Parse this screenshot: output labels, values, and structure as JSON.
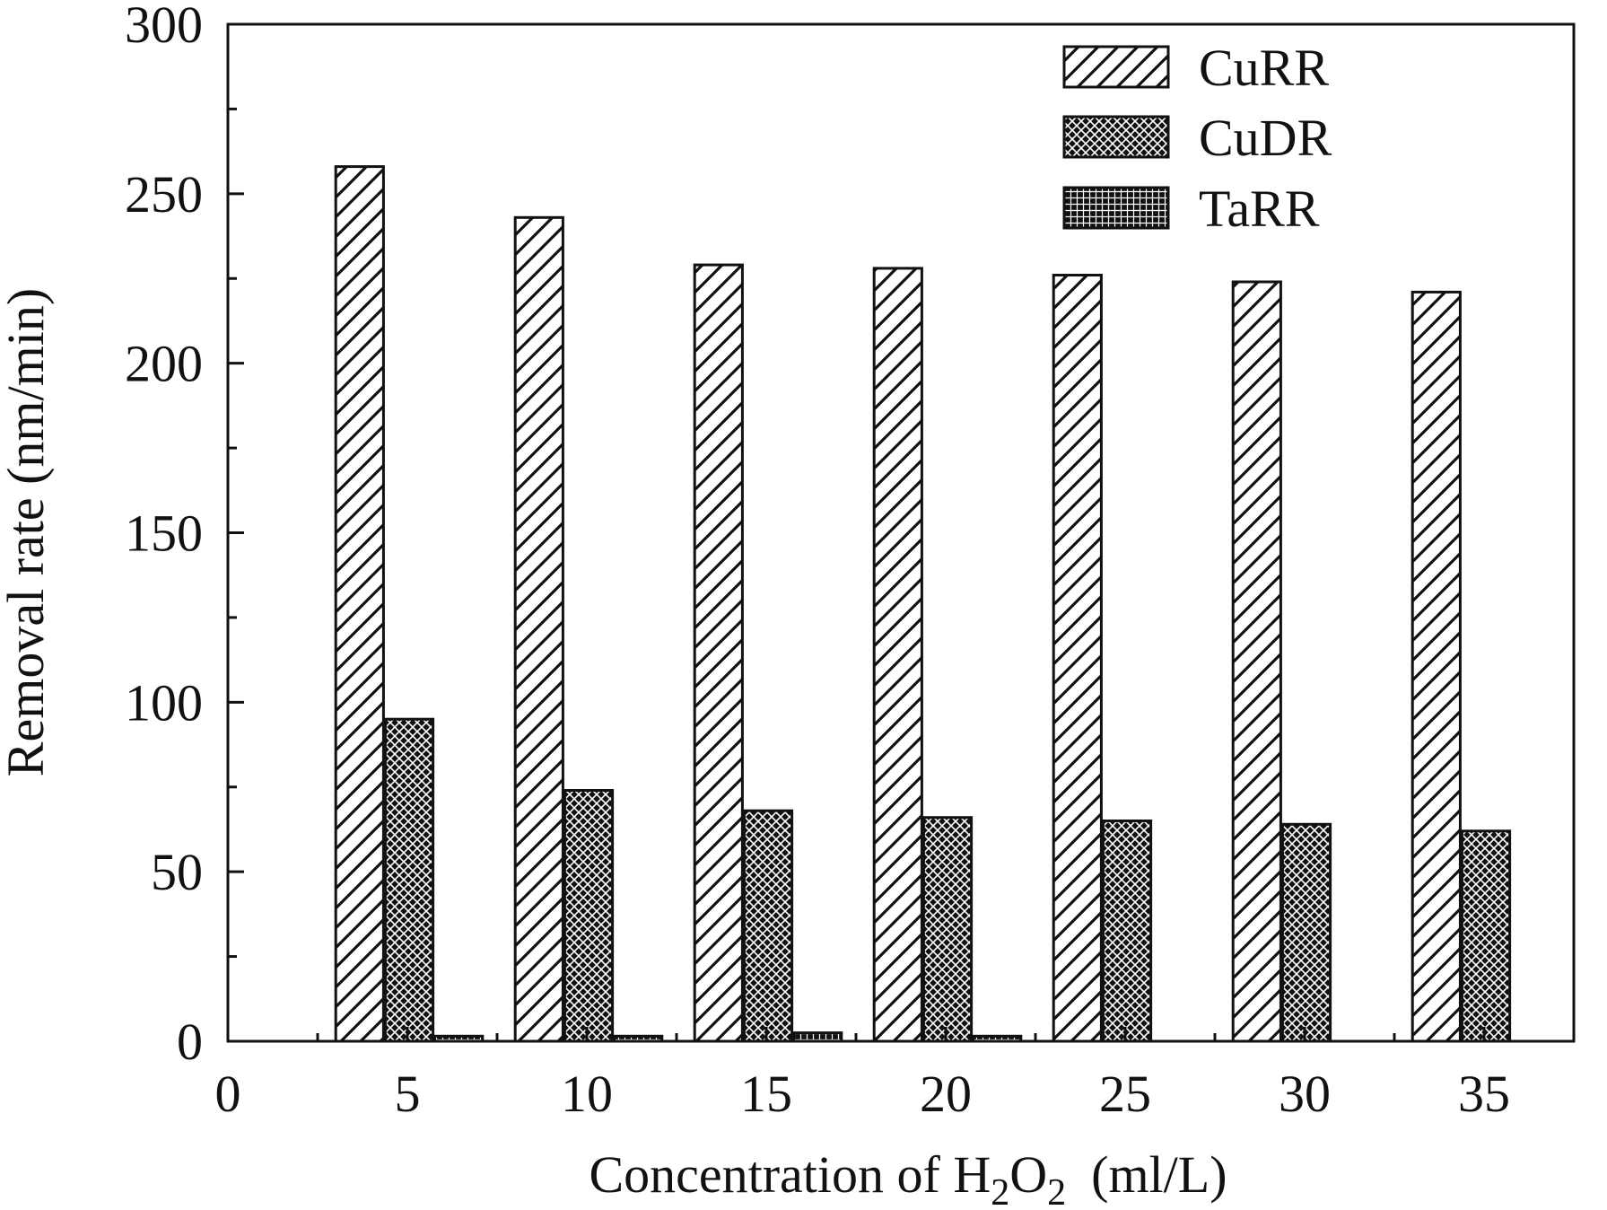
{
  "chart_data": {
    "type": "bar",
    "title": "",
    "xlabel": {
      "main": "Concentration of H",
      "sub1": "2",
      "mid": "O",
      "sub2": "2",
      "unit": "(ml/L)"
    },
    "ylabel": "Removal rate (nm/min)",
    "xlim": [
      0,
      37.5
    ],
    "ylim": [
      0,
      300
    ],
    "x_ticks": [
      "0",
      "5",
      "10",
      "15",
      "20",
      "25",
      "30",
      "35"
    ],
    "y_ticks": [
      "0",
      "50",
      "100",
      "150",
      "200",
      "250",
      "300"
    ],
    "categories": [
      5,
      10,
      15,
      20,
      25,
      30,
      35
    ],
    "series": [
      {
        "name": "CuRR",
        "pattern": "diagonal-hatch",
        "values": [
          258,
          243,
          229,
          228,
          226,
          224,
          221
        ]
      },
      {
        "name": "CuDR",
        "pattern": "crosshatch-dark",
        "values": [
          95,
          74,
          68,
          66,
          65,
          64,
          62
        ]
      },
      {
        "name": "TaRR",
        "pattern": "grid-dark",
        "values": [
          1.5,
          1.5,
          2.5,
          1.5,
          0,
          0,
          0
        ]
      }
    ],
    "legend_position": "top-right",
    "grid": false
  },
  "colors": {
    "ink": "#111111",
    "background": "#ffffff"
  }
}
